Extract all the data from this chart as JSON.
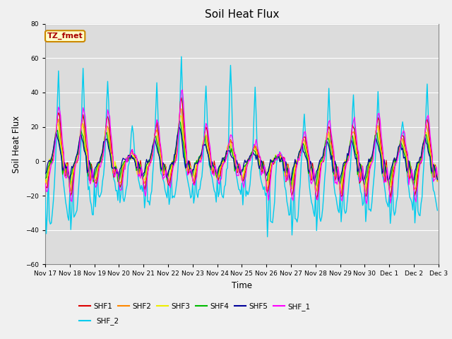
{
  "title": "Soil Heat Flux",
  "xlabel": "Time",
  "ylabel": "Soil Heat Flux",
  "ylim": [
    -60,
    80
  ],
  "fig_bg": "#f0f0f0",
  "plot_bg": "#dcdcdc",
  "series_colors": {
    "SHF1": "#dd0000",
    "SHF2": "#ff8800",
    "SHF3": "#eeee00",
    "SHF4": "#00bb00",
    "SHF5": "#000099",
    "SHF_1": "#ff00ff",
    "SHF_2": "#00ccee"
  },
  "annotation_text": "TZ_fmet",
  "annotation_bg": "#ffffcc",
  "annotation_border": "#cc8800",
  "annotation_text_color": "#aa0000",
  "yticks": [
    -60,
    -40,
    -20,
    0,
    20,
    40,
    60,
    80
  ],
  "n_days": 16,
  "start_day": 17,
  "hours_per_day": 24,
  "shf2_day_peaks": [
    51,
    56,
    47,
    21,
    46,
    62,
    45,
    57,
    40,
    5,
    29,
    41,
    40,
    39,
    25,
    44
  ],
  "shf2_night_troughs": [
    -45,
    -41,
    -25,
    -25,
    -30,
    -28,
    -26,
    -25,
    -25,
    -44,
    -44,
    -41,
    -36,
    -38,
    -38,
    -38
  ],
  "small_day_peaks": [
    28,
    27,
    26,
    5,
    21,
    36,
    19,
    13,
    10,
    4,
    15,
    21,
    21,
    25,
    16,
    24
  ],
  "small_night_troughs": [
    -16,
    -20,
    -14,
    -16,
    -16,
    -13,
    -13,
    -12,
    -12,
    -19,
    -20,
    -21,
    -21,
    -21,
    -20,
    -20
  ]
}
